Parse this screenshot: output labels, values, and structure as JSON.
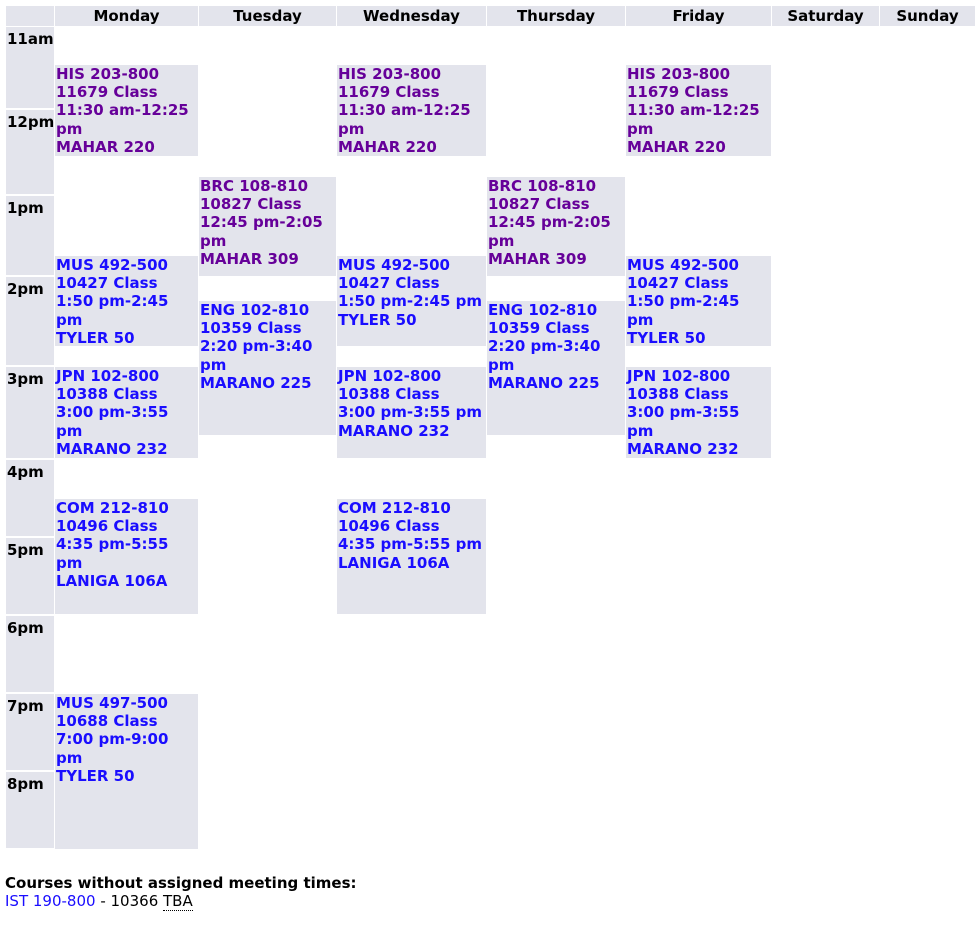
{
  "header": {
    "days": [
      "",
      "Monday",
      "Tuesday",
      "Wednesday",
      "Thursday",
      "Friday",
      "Saturday",
      "Sunday"
    ]
  },
  "times": [
    "11am",
    "12pm",
    "1pm",
    "2pm",
    "3pm",
    "4pm",
    "5pm",
    "6pm",
    "7pm",
    "8pm"
  ],
  "colors": {
    "link": "#1a0dff",
    "visited": "#660099",
    "cell": "#e3e4ec"
  },
  "days": [
    {
      "name": "Monday",
      "classes": [
        {
          "course": "HIS 203-800",
          "crn": "11679 Class",
          "time": "11:30 am-12:25 pm",
          "room": "MAHAR 220",
          "visited": true
        },
        {
          "course": "MUS 492-500",
          "crn": "10427 Class",
          "time": "1:50 pm-2:45 pm",
          "room": "TYLER 50",
          "visited": false
        },
        {
          "course": "JPN 102-800",
          "crn": "10388 Class",
          "time": "3:00 pm-3:55 pm",
          "room": "MARANO 232",
          "visited": false
        },
        {
          "course": "COM 212-810",
          "crn": "10496 Class",
          "time": "4:35 pm-5:55 pm",
          "room": "LANIGA 106A",
          "visited": false
        },
        {
          "course": "MUS 497-500",
          "crn": "10688 Class",
          "time": "7:00 pm-9:00 pm",
          "room": "TYLER 50",
          "visited": false
        }
      ]
    },
    {
      "name": "Tuesday",
      "classes": [
        {
          "course": "BRC 108-810",
          "crn": "10827 Class",
          "time": "12:45 pm-2:05 pm",
          "room": "MAHAR 309",
          "visited": true
        },
        {
          "course": "ENG 102-810",
          "crn": "10359 Class",
          "time": "2:20 pm-3:40 pm",
          "room": "MARANO 225",
          "visited": false
        }
      ]
    },
    {
      "name": "Wednesday",
      "classes": [
        {
          "course": "HIS 203-800",
          "crn": "11679 Class",
          "time": "11:30 am-12:25 pm",
          "room": "MAHAR 220",
          "visited": true
        },
        {
          "course": "MUS 492-500",
          "crn": "10427 Class",
          "time": "1:50 pm-2:45 pm",
          "room": "TYLER 50",
          "visited": false
        },
        {
          "course": "JPN 102-800",
          "crn": "10388 Class",
          "time": "3:00 pm-3:55 pm",
          "room": "MARANO 232",
          "visited": false
        },
        {
          "course": "COM 212-810",
          "crn": "10496 Class",
          "time": "4:35 pm-5:55 pm",
          "room": "LANIGA 106A",
          "visited": false
        }
      ]
    },
    {
      "name": "Thursday",
      "classes": [
        {
          "course": "BRC 108-810",
          "crn": "10827 Class",
          "time": "12:45 pm-2:05 pm",
          "room": "MAHAR 309",
          "visited": true
        },
        {
          "course": "ENG 102-810",
          "crn": "10359 Class",
          "time": "2:20 pm-3:40 pm",
          "room": "MARANO 225",
          "visited": false
        }
      ]
    },
    {
      "name": "Friday",
      "classes": [
        {
          "course": "HIS 203-800",
          "crn": "11679 Class",
          "time": "11:30 am-12:25 pm",
          "room": "MAHAR 220",
          "visited": true
        },
        {
          "course": "MUS 492-500",
          "crn": "10427 Class",
          "time": "1:50 pm-2:45 pm",
          "room": "TYLER 50",
          "visited": false
        },
        {
          "course": "JPN 102-800",
          "crn": "10388 Class",
          "time": "3:00 pm-3:55 pm",
          "room": "MARANO 232",
          "visited": false
        }
      ]
    }
  ],
  "footer": {
    "title": "Courses without assigned meeting times:",
    "course": "IST 190-800",
    "sep": " - ",
    "crn": "10366",
    "tba": "TBA"
  }
}
